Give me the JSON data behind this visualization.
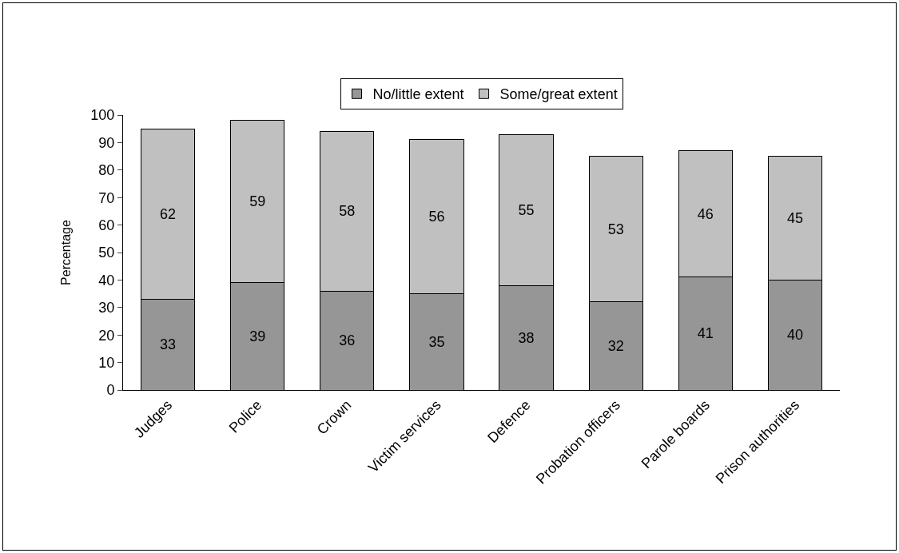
{
  "chart_data": {
    "type": "bar",
    "stacked": true,
    "ylabel": "Percentage",
    "categories": [
      "Judges",
      "Police",
      "Crown",
      "Victim services",
      "Defence",
      "Probation officers",
      "Parole boards",
      "Prison authorities"
    ],
    "series": [
      {
        "name": "No/little extent",
        "color": "#969696",
        "values": [
          33,
          39,
          36,
          35,
          38,
          32,
          41,
          40
        ]
      },
      {
        "name": "Some/great extent",
        "color": "#c0c0c0",
        "values": [
          62,
          59,
          58,
          56,
          55,
          53,
          46,
          45
        ]
      }
    ],
    "ylim": [
      0,
      100
    ],
    "yticks": [
      0,
      10,
      20,
      30,
      40,
      50,
      60,
      70,
      80,
      90,
      100
    ],
    "grid": false,
    "legend": "top",
    "data_labels": true
  }
}
